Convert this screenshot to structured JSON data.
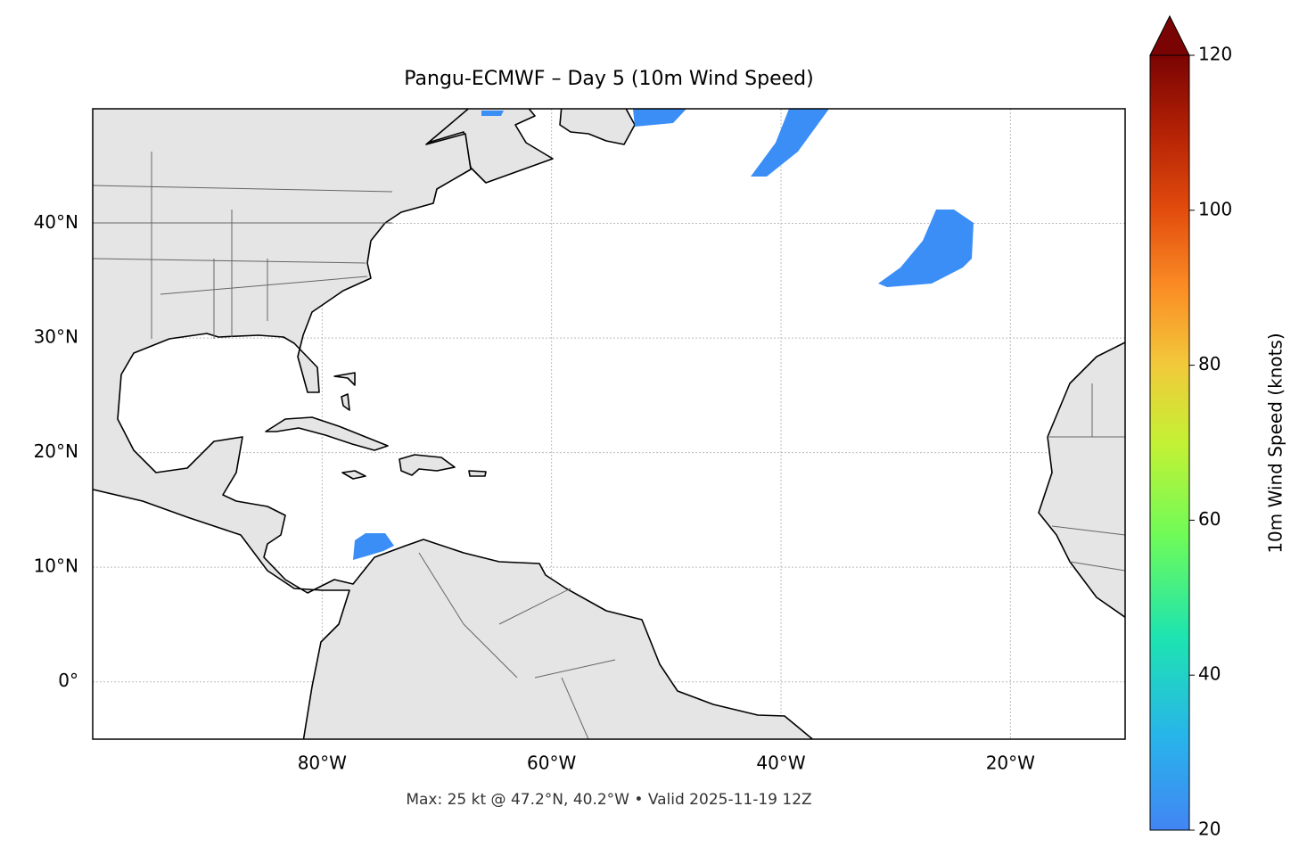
{
  "chart_data": {
    "type": "map",
    "title": "Pangu-ECMWF – Day 5 (10m Wind Speed)",
    "footer": "Max: 25 kt @ 47.2°N, 40.2°W • Valid 2025-11-19 12Z",
    "xlim": [
      -100,
      -10
    ],
    "ylim": [
      -5,
      50
    ],
    "xticks": [
      {
        "value": -80,
        "label": "80°W"
      },
      {
        "value": -60,
        "label": "60°W"
      },
      {
        "value": -40,
        "label": "40°W"
      },
      {
        "value": -20,
        "label": "20°W"
      }
    ],
    "yticks": [
      {
        "value": 0,
        "label": "0°"
      },
      {
        "value": 10,
        "label": "10°N"
      },
      {
        "value": 20,
        "label": "20°N"
      },
      {
        "value": 30,
        "label": "30°N"
      },
      {
        "value": 40,
        "label": "40°N"
      }
    ],
    "grid": true,
    "colorbar": {
      "label": "10m Wind Speed (knots)",
      "lim": [
        20,
        120
      ],
      "ticks": [
        20,
        40,
        60,
        80,
        100,
        120
      ],
      "extend": "max"
    }
  }
}
